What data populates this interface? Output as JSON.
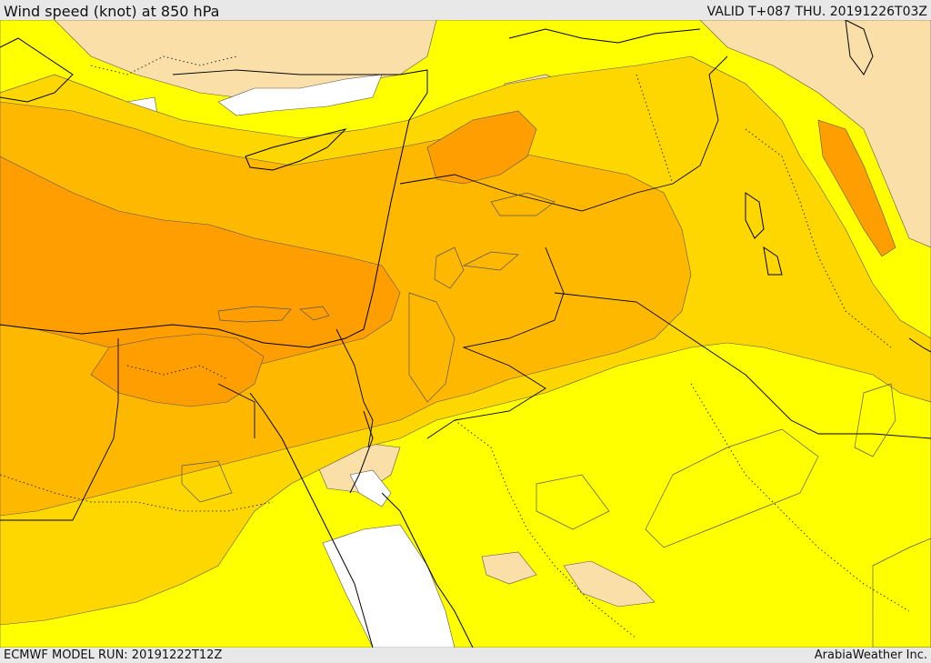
{
  "header": {
    "title": "Wind speed (knot) at 850 hPa",
    "valid": "VALID T+087 THU. 20191226T03Z"
  },
  "footer": {
    "model_run": "ECMWF MODEL RUN: 20191222T12Z",
    "credit": "ArabiaWeather Inc."
  },
  "map": {
    "fill_colors": {
      "calm": "#ffffff",
      "light": "#fbdfa8",
      "low": "#ffff00",
      "moderate": "#ffd700",
      "fresh": "#ffb800",
      "strong": "#ff9e00"
    },
    "coastline_color": "#000000",
    "border_color": "#000000",
    "contour_color": "#555555"
  }
}
